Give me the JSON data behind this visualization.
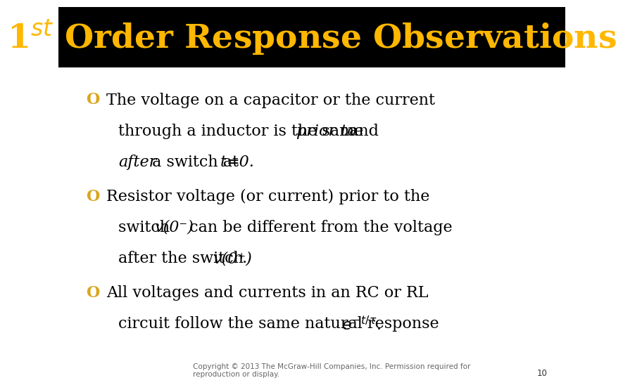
{
  "title_text": "1$^{st}$ Order Response Observations",
  "title_color": "#FFB700",
  "title_bg_color": "#000000",
  "body_bg_color": "#FFFFFF",
  "bullet_color": "#DAA520",
  "text_color": "#000000",
  "footer_text": "Copyright © 2013 The McGraw-Hill Companies, Inc. Permission required for\nreproduction or display.",
  "footer_page": "10",
  "font_size_body": 16,
  "font_size_title": 34,
  "font_size_footer": 7.5
}
